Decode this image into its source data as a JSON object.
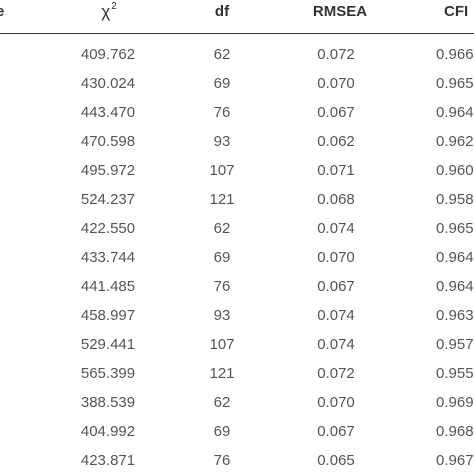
{
  "table": {
    "headers": {
      "cut_left": "e",
      "chi": "χ",
      "chi_sup": "2",
      "df": "df",
      "rmsea": "RMSEA",
      "cfi": "CFI"
    },
    "rows": [
      {
        "chi": "409.762",
        "df": "62",
        "rmsea": "0.072",
        "cfi": "0.966"
      },
      {
        "chi": "430.024",
        "df": "69",
        "rmsea": "0.070",
        "cfi": "0.965"
      },
      {
        "chi": "443.470",
        "df": "76",
        "rmsea": "0.067",
        "cfi": "0.964"
      },
      {
        "chi": "470.598",
        "df": "93",
        "rmsea": "0.062",
        "cfi": "0.962"
      },
      {
        "chi": "495.972",
        "df": "107",
        "rmsea": "0.071",
        "cfi": "0.960"
      },
      {
        "chi": "524.237",
        "df": "121",
        "rmsea": "0.068",
        "cfi": "0.958"
      },
      {
        "chi": "422.550",
        "df": "62",
        "rmsea": "0.074",
        "cfi": "0.965"
      },
      {
        "chi": "433.744",
        "df": "69",
        "rmsea": "0.070",
        "cfi": "0.964"
      },
      {
        "chi": "441.485",
        "df": "76",
        "rmsea": "0.067",
        "cfi": "0.964"
      },
      {
        "chi": "458.997",
        "df": "93",
        "rmsea": "0.074",
        "cfi": "0.963"
      },
      {
        "chi": "529.441",
        "df": "107",
        "rmsea": "0.074",
        "cfi": "0.957"
      },
      {
        "chi": "565.399",
        "df": "121",
        "rmsea": "0.072",
        "cfi": "0.955"
      },
      {
        "chi": "388.539",
        "df": "62",
        "rmsea": "0.070",
        "cfi": "0.969"
      },
      {
        "chi": "404.992",
        "df": "69",
        "rmsea": "0.067",
        "cfi": "0.968"
      },
      {
        "chi": "423.871",
        "df": "76",
        "rmsea": "0.065",
        "cfi": "0.967"
      }
    ]
  }
}
